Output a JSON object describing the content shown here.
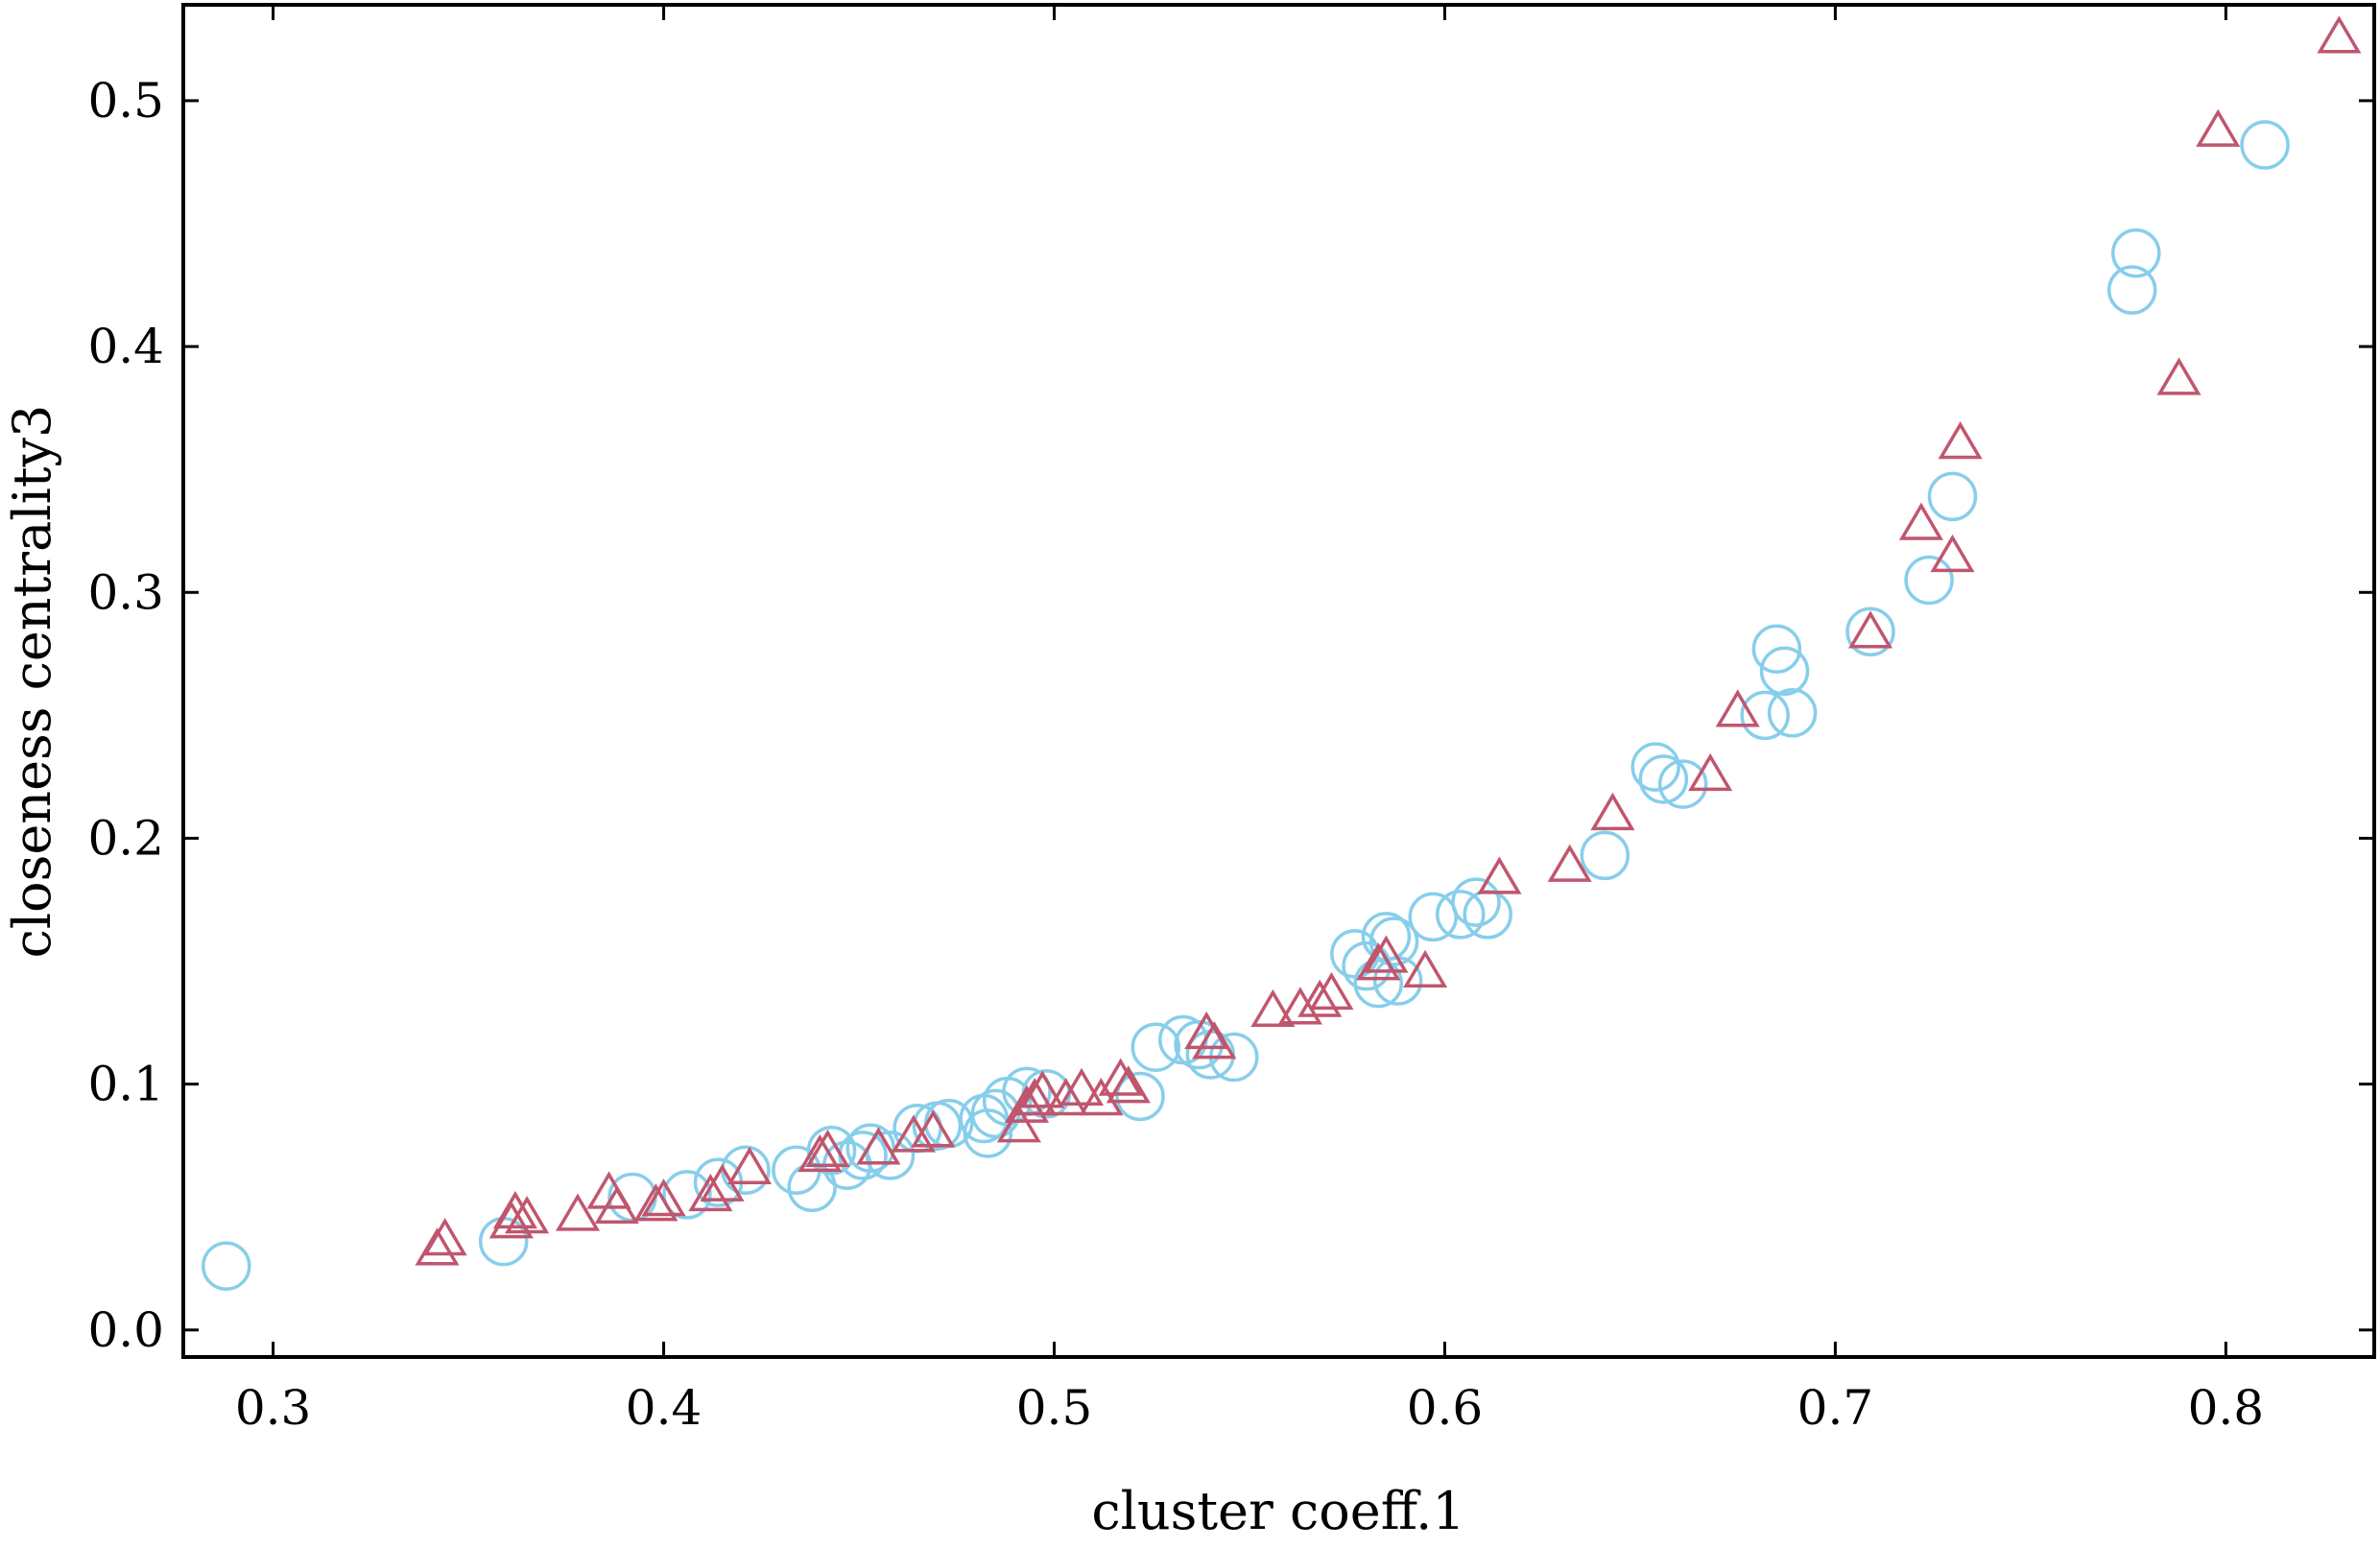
{
  "chart_data": {
    "type": "scatter",
    "title": "",
    "xlabel": "cluster coeff.1",
    "ylabel": "closeness centrality3",
    "xlim": [
      0.277,
      0.838
    ],
    "ylim": [
      -0.011,
      0.539
    ],
    "xticks": [
      0.3,
      0.4,
      0.5,
      0.6,
      0.7,
      0.8
    ],
    "xtick_labels": [
      "0.3",
      "0.4",
      "0.5",
      "0.6",
      "0.7",
      "0.8"
    ],
    "yticks": [
      0.0,
      0.1,
      0.2,
      0.3,
      0.4,
      0.5
    ],
    "ytick_labels": [
      "0.0",
      "0.1",
      "0.2",
      "0.3",
      "0.4",
      "0.5"
    ],
    "grid": false,
    "legend": "none",
    "series": [
      {
        "marker": "circle",
        "color": "#87CEEB",
        "points": [
          [
            0.288,
            0.026
          ],
          [
            0.359,
            0.036
          ],
          [
            0.392,
            0.054
          ],
          [
            0.406,
            0.055
          ],
          [
            0.414,
            0.06
          ],
          [
            0.421,
            0.065
          ],
          [
            0.434,
            0.065
          ],
          [
            0.438,
            0.058
          ],
          [
            0.443,
            0.073
          ],
          [
            0.447,
            0.067
          ],
          [
            0.451,
            0.071
          ],
          [
            0.453,
            0.074
          ],
          [
            0.458,
            0.071
          ],
          [
            0.465,
            0.082
          ],
          [
            0.47,
            0.083
          ],
          [
            0.473,
            0.084
          ],
          [
            0.482,
            0.086
          ],
          [
            0.483,
            0.08
          ],
          [
            0.485,
            0.088
          ],
          [
            0.488,
            0.093
          ],
          [
            0.493,
            0.097
          ],
          [
            0.498,
            0.096
          ],
          [
            0.522,
            0.095
          ],
          [
            0.526,
            0.115
          ],
          [
            0.533,
            0.118
          ],
          [
            0.537,
            0.116
          ],
          [
            0.54,
            0.112
          ],
          [
            0.546,
            0.111
          ],
          [
            0.577,
            0.153
          ],
          [
            0.58,
            0.148
          ],
          [
            0.583,
            0.141
          ],
          [
            0.585,
            0.16
          ],
          [
            0.587,
            0.158
          ],
          [
            0.588,
            0.142
          ],
          [
            0.597,
            0.168
          ],
          [
            0.604,
            0.169
          ],
          [
            0.608,
            0.174
          ],
          [
            0.611,
            0.169
          ],
          [
            0.641,
            0.193
          ],
          [
            0.654,
            0.229
          ],
          [
            0.656,
            0.224
          ],
          [
            0.661,
            0.222
          ],
          [
            0.682,
            0.25
          ],
          [
            0.685,
            0.277
          ],
          [
            0.687,
            0.268
          ],
          [
            0.689,
            0.251
          ],
          [
            0.709,
            0.284
          ],
          [
            0.724,
            0.305
          ],
          [
            0.73,
            0.339
          ],
          [
            0.776,
            0.423
          ],
          [
            0.777,
            0.438
          ],
          [
            0.81,
            0.482
          ]
        ]
      },
      {
        "marker": "triangle",
        "color": "#C0566E",
        "points": [
          [
            0.342,
            0.032
          ],
          [
            0.344,
            0.036
          ],
          [
            0.361,
            0.043
          ],
          [
            0.362,
            0.047
          ],
          [
            0.365,
            0.045
          ],
          [
            0.378,
            0.046
          ],
          [
            0.386,
            0.055
          ],
          [
            0.388,
            0.049
          ],
          [
            0.398,
            0.05
          ],
          [
            0.4,
            0.052
          ],
          [
            0.412,
            0.054
          ],
          [
            0.415,
            0.058
          ],
          [
            0.422,
            0.065
          ],
          [
            0.44,
            0.07
          ],
          [
            0.442,
            0.072
          ],
          [
            0.455,
            0.073
          ],
          [
            0.464,
            0.078
          ],
          [
            0.469,
            0.08
          ],
          [
            0.491,
            0.082
          ],
          [
            0.493,
            0.09
          ],
          [
            0.495,
            0.093
          ],
          [
            0.497,
            0.096
          ],
          [
            0.503,
            0.093
          ],
          [
            0.507,
            0.097
          ],
          [
            0.512,
            0.093
          ],
          [
            0.517,
            0.101
          ],
          [
            0.519,
            0.098
          ],
          [
            0.539,
            0.12
          ],
          [
            0.541,
            0.116
          ],
          [
            0.556,
            0.129
          ],
          [
            0.563,
            0.13
          ],
          [
            0.568,
            0.133
          ],
          [
            0.571,
            0.136
          ],
          [
            0.583,
            0.148
          ],
          [
            0.585,
            0.151
          ],
          [
            0.595,
            0.145
          ],
          [
            0.614,
            0.183
          ],
          [
            0.632,
            0.188
          ],
          [
            0.643,
            0.209
          ],
          [
            0.668,
            0.225
          ],
          [
            0.675,
            0.251
          ],
          [
            0.709,
            0.283
          ],
          [
            0.722,
            0.327
          ],
          [
            0.73,
            0.314
          ],
          [
            0.732,
            0.36
          ],
          [
            0.788,
            0.386
          ],
          [
            0.798,
            0.487
          ],
          [
            0.829,
            0.525
          ]
        ]
      }
    ]
  }
}
